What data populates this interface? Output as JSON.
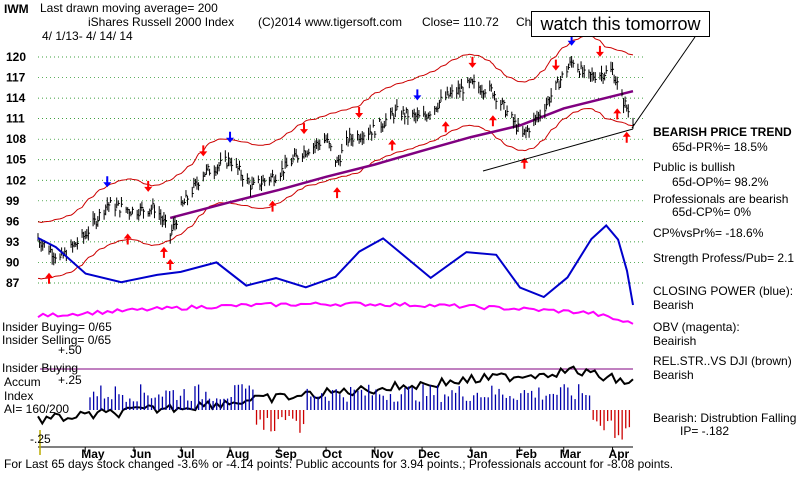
{
  "header": {
    "ticker": "IWM",
    "ma_line": "Last drawn moving average= 200",
    "title": "iShares Russell 2000 Index",
    "copyright": "(C)2014 www.tigersoft.com",
    "close": "Close=  110.72",
    "close_suffix": "Ch",
    "date_range": "4/ 1/13- 4/ 14/ 14"
  },
  "callout": "watch this tomorrow",
  "right_panel": {
    "trend_title": "BEARISH PRICE TREND",
    "pr_line": "65d-PR%= 18.5%",
    "public_title": "Public is bullish",
    "op_line": "65d-OP%= 98.2%",
    "pros_title": "Professionals are bearish",
    "cp_line": "65d-CP%= 0%",
    "cpvspr": "CP%vsPr%= -18.6%",
    "strength": "Strength Profess/Pub= 2.1",
    "closing_power": "CLOSING POWER (blue):",
    "closing_power_val": "Bearish",
    "obv": "OBV (magenta):",
    "obv_val": "Beairish",
    "relstr": "REL.STR..VS DJI (brown)",
    "relstr_val": "Bearish",
    "accum": "Bearish: Distrubtion Falling",
    "ip": "IP= -.182"
  },
  "left_labels": {
    "insider_buying_1": "Insider Buying= 0/65",
    "insider_selling": "Insider Selling= 0/65",
    "plus50": "+.50",
    "insider_buying_2": "Insider Buying",
    "accum": "Accum",
    "plus25": "+.25",
    "index": "Index",
    "ai": "AI= 160/200",
    "minus25": "-.25"
  },
  "footer": "For Last 65 days stock changed -3.6% or -4.14 points:  Public accounts for  3.94 points.;  Professionals account for -8.08 points.",
  "colors": {
    "price": "#000000",
    "ma": "#800080",
    "bands": "#cc0000",
    "closing_power": "#0000cc",
    "obv": "#ff00ff",
    "relstr": "#000000",
    "accum_up": "#0000aa",
    "accum_down": "#cc0000",
    "grid": "#008000",
    "arrow_up": "#ff0000",
    "arrow_down": "#0000ff"
  },
  "chart_data": {
    "type": "line",
    "title": "iShares Russell 2000 Index",
    "xlabel": "",
    "ylabel": "",
    "x_ticks": [
      "May",
      "Jun",
      "Jul",
      "Aug",
      "Sep",
      "Oct",
      "Nov",
      "Dec",
      "Jan",
      "Feb",
      "Mar",
      "Apr"
    ],
    "y_ticks": [
      87,
      90,
      93,
      96,
      99,
      102,
      105,
      108,
      111,
      114,
      117,
      120
    ],
    "ylim": [
      85,
      122
    ],
    "grid": true,
    "series": [
      {
        "name": "IWM",
        "x": [
          "2013-04-01",
          "2013-04-15",
          "2013-05-01",
          "2013-05-15",
          "2013-06-01",
          "2013-06-15",
          "2013-06-24",
          "2013-07-01",
          "2013-07-15",
          "2013-08-01",
          "2013-08-15",
          "2013-09-01",
          "2013-09-15",
          "2013-10-01",
          "2013-10-08",
          "2013-10-15",
          "2013-11-01",
          "2013-11-15",
          "2013-12-01",
          "2013-12-15",
          "2014-01-01",
          "2014-01-15",
          "2014-02-03",
          "2014-02-15",
          "2014-03-01",
          "2014-03-07",
          "2014-03-15",
          "2014-04-01",
          "2014-04-07",
          "2014-04-14"
        ],
        "values": [
          93.5,
          90.5,
          94.0,
          98.5,
          97.5,
          98.0,
          94.0,
          98.0,
          103.0,
          105.0,
          101.0,
          103.0,
          106.0,
          108.0,
          104.5,
          108.0,
          109.5,
          112.0,
          111.0,
          114.0,
          116.0,
          115.0,
          108.5,
          112.0,
          117.5,
          119.5,
          117.0,
          118.0,
          114.0,
          110.72
        ]
      },
      {
        "name": "200-day MA",
        "x": [
          "2013-06-24",
          "2013-08-01",
          "2013-09-01",
          "2013-10-01",
          "2013-11-01",
          "2013-12-01",
          "2014-01-01",
          "2014-02-01",
          "2014-03-01",
          "2014-04-14"
        ],
        "values": [
          96.5,
          98.8,
          100.6,
          102.5,
          104.3,
          106.3,
          108.3,
          110.0,
          112.5,
          115.0
        ]
      }
    ]
  }
}
